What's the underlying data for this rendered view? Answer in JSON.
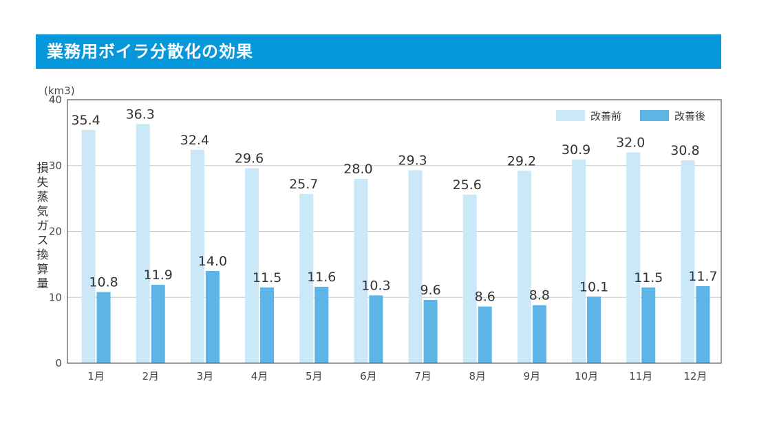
{
  "header": {
    "title": "業務用ボイラ分散化の効果"
  },
  "chart_data": {
    "type": "bar",
    "title": "業務用ボイラ分散化の効果",
    "unit": "(km3)",
    "ylabel": "損失蒸気ガス換算量",
    "ylim": [
      0,
      40
    ],
    "yticks": [
      0,
      10,
      20,
      30,
      40
    ],
    "categories": [
      "1月",
      "2月",
      "3月",
      "4月",
      "5月",
      "6月",
      "7月",
      "8月",
      "9月",
      "10月",
      "11月",
      "12月"
    ],
    "series": [
      {
        "name": "改善前",
        "color": "#cbe8f8",
        "values": [
          35.4,
          36.3,
          32.4,
          29.6,
          25.7,
          28.0,
          29.3,
          25.6,
          29.2,
          30.9,
          32.0,
          30.8
        ]
      },
      {
        "name": "改善後",
        "color": "#5db4e6",
        "values": [
          10.8,
          11.9,
          14.0,
          11.5,
          11.6,
          10.3,
          9.6,
          8.6,
          8.8,
          10.1,
          11.5,
          11.7
        ]
      }
    ],
    "grid": true,
    "legend": "top-right"
  }
}
